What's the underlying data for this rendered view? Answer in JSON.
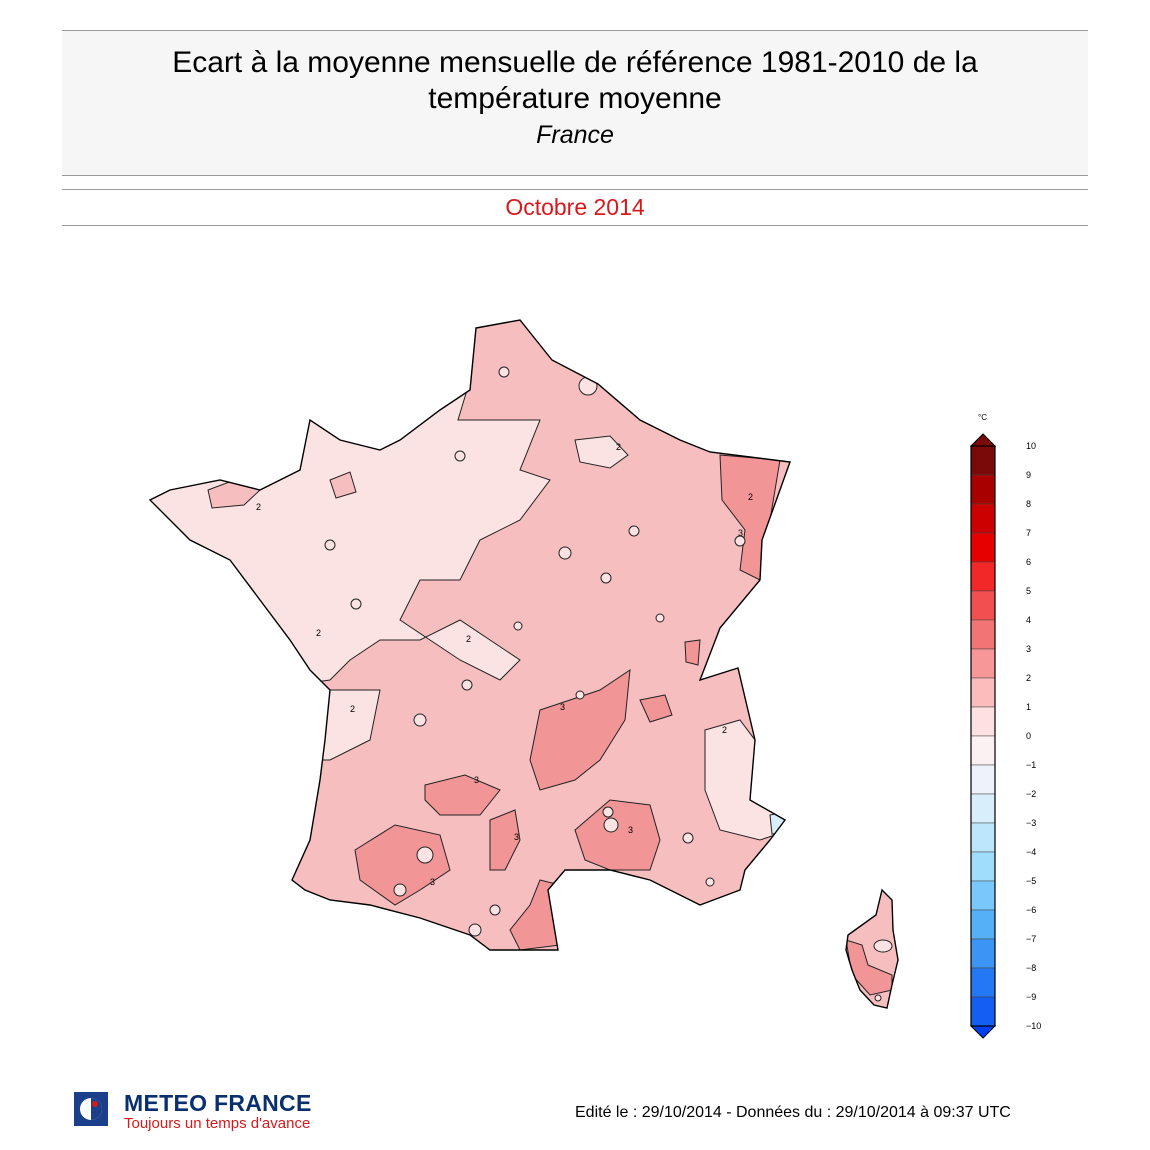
{
  "header": {
    "title_line1": "Ecart à la moyenne mensuelle de référence 1981-2010 de la",
    "title_line2": "température moyenne",
    "subtitle": "France"
  },
  "period": "Octobre 2014",
  "legend": {
    "unit": "°C",
    "tick_labels": [
      "10",
      "9",
      "8",
      "7",
      "6",
      "5",
      "4",
      "3",
      "2",
      "1",
      "0",
      "−1",
      "−2",
      "−3",
      "−4",
      "−5",
      "−6",
      "−7",
      "−8",
      "−9",
      "−10"
    ],
    "colors": [
      "#7a0a0a",
      "#a80000",
      "#cc0000",
      "#e60000",
      "#f22828",
      "#f25050",
      "#f27474",
      "#f79797",
      "#fbbcbc",
      "#fde0e0",
      "#fbf1f2",
      "#eef2fa",
      "#d8eefa",
      "#bce6fb",
      "#a0dcfb",
      "#7ac8fb",
      "#55b0f8",
      "#3c95f5",
      "#2478f3",
      "#125ff2",
      "#0040f0"
    ]
  },
  "map": {
    "contour_labels": [
      "2",
      "2",
      "2",
      "2",
      "2",
      "2",
      "2",
      "3",
      "3",
      "3",
      "3",
      "3",
      "3"
    ],
    "colors": {
      "anomaly_1_2": "#fbe2e3",
      "anomaly_2_3": "#f7bebf",
      "anomaly_3_4": "#f29597",
      "anomaly_0_1": "#eef2fa"
    }
  },
  "footer": {
    "brand_name": "METEO FRANCE",
    "slogan": "Toujours un temps d'avance",
    "edit_info": "Edité le : 29/10/2014 - Données du : 29/10/2014 à 09:37 UTC"
  }
}
